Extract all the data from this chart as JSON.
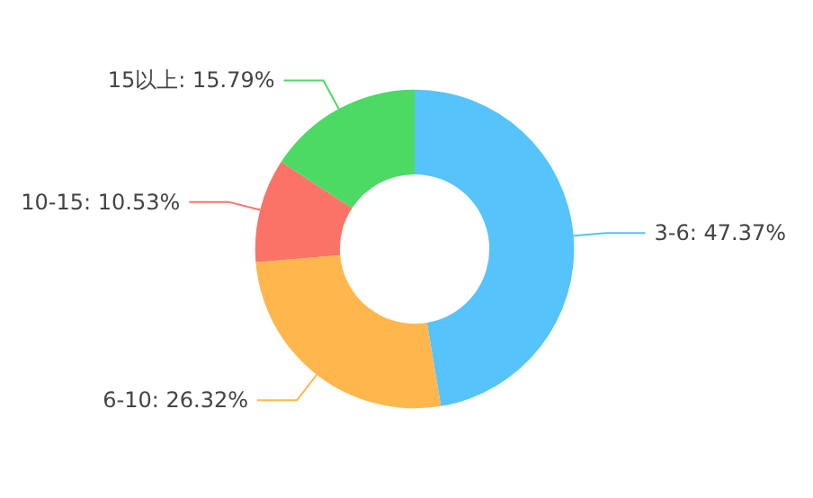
{
  "chart_data": {
    "type": "donut",
    "categories": [
      "3-6",
      "6-10",
      "10-15",
      "15以上"
    ],
    "values": [
      47.37,
      26.32,
      10.53,
      15.79
    ],
    "value_labels": [
      "47.37%",
      "26.32%",
      "10.53%",
      "15.79%"
    ],
    "colors": [
      "#56c3fb",
      "#ffb74d",
      "#fb7367",
      "#4cd964"
    ],
    "legend": false
  }
}
